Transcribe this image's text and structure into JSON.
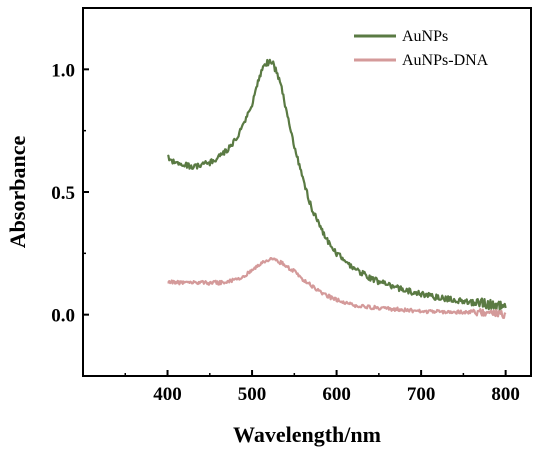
{
  "chart_data": {
    "type": "line",
    "xlabel": "Wavelength/nm",
    "ylabel": "Absorbance",
    "xlim": [
      300,
      830
    ],
    "ylim": [
      -0.25,
      1.25
    ],
    "x_ticks": [
      400,
      500,
      600,
      700,
      800
    ],
    "y_ticks": [
      0.0,
      0.5,
      1.0
    ],
    "x_tick_labels": [
      "400",
      "500",
      "600",
      "700",
      "800"
    ],
    "y_tick_labels": [
      "0.0",
      "0.5",
      "1.0"
    ],
    "legend_position": "top-right",
    "series": [
      {
        "name": "AuNPs",
        "color": "#5a7a43",
        "x": [
          400,
          410,
          420,
          430,
          440,
          450,
          460,
          470,
          480,
          490,
          500,
          505,
          510,
          515,
          520,
          525,
          530,
          535,
          540,
          550,
          560,
          570,
          580,
          590,
          600,
          620,
          640,
          660,
          680,
          700,
          720,
          740,
          760,
          780,
          800
        ],
        "y": [
          0.64,
          0.62,
          0.61,
          0.6,
          0.61,
          0.62,
          0.64,
          0.67,
          0.71,
          0.77,
          0.86,
          0.92,
          0.98,
          1.02,
          1.03,
          1.02,
          0.98,
          0.92,
          0.84,
          0.69,
          0.55,
          0.44,
          0.36,
          0.3,
          0.25,
          0.19,
          0.15,
          0.12,
          0.1,
          0.085,
          0.07,
          0.06,
          0.05,
          0.04,
          0.03
        ]
      },
      {
        "name": "AuNPs-DNA",
        "color": "#d49a9a",
        "x": [
          400,
          420,
          440,
          460,
          480,
          490,
          500,
          510,
          520,
          525,
          530,
          540,
          550,
          560,
          570,
          580,
          590,
          600,
          620,
          640,
          660,
          680,
          700,
          720,
          740,
          760,
          780,
          800
        ],
        "y": [
          0.135,
          0.13,
          0.13,
          0.13,
          0.14,
          0.155,
          0.18,
          0.205,
          0.225,
          0.225,
          0.22,
          0.2,
          0.175,
          0.145,
          0.12,
          0.095,
          0.075,
          0.06,
          0.04,
          0.03,
          0.025,
          0.02,
          0.015,
          0.012,
          0.01,
          0.01,
          0.01,
          0.0
        ]
      }
    ]
  }
}
